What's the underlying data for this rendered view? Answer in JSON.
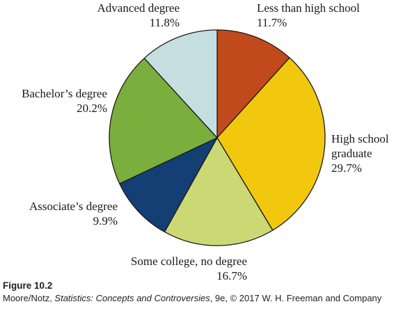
{
  "chart_data": {
    "type": "pie",
    "slices": [
      {
        "label_lines": [
          "Less than high school"
        ],
        "value": 11.7,
        "value_label": "11.7%",
        "color": "#c04a1c"
      },
      {
        "label_lines": [
          "High school",
          "graduate"
        ],
        "value": 29.7,
        "value_label": "29.7%",
        "color": "#f2c80f"
      },
      {
        "label_lines": [
          "Some college, no degree"
        ],
        "value": 16.7,
        "value_label": "16.7%",
        "color": "#ccd874"
      },
      {
        "label_lines": [
          "Associate’s degree"
        ],
        "value": 9.9,
        "value_label": "9.9%",
        "color": "#143f75"
      },
      {
        "label_lines": [
          "Bachelor’s degree"
        ],
        "value": 20.2,
        "value_label": "20.2%",
        "color": "#7aae3d"
      },
      {
        "label_lines": [
          "Advanced degree"
        ],
        "value": 11.8,
        "value_label": "11.8%",
        "color": "#c5dfe0"
      }
    ],
    "start": "12 o'clock",
    "direction": "clockwise",
    "slice_border_color": "#1a1a1a"
  },
  "caption": {
    "figure_label": "Figure 10.2",
    "source_authors": "Moore/Notz, ",
    "source_title": "Statistics: Concepts and Controversies",
    "source_rest": ", 9e, © 2017 W. H. Freeman and Company"
  }
}
